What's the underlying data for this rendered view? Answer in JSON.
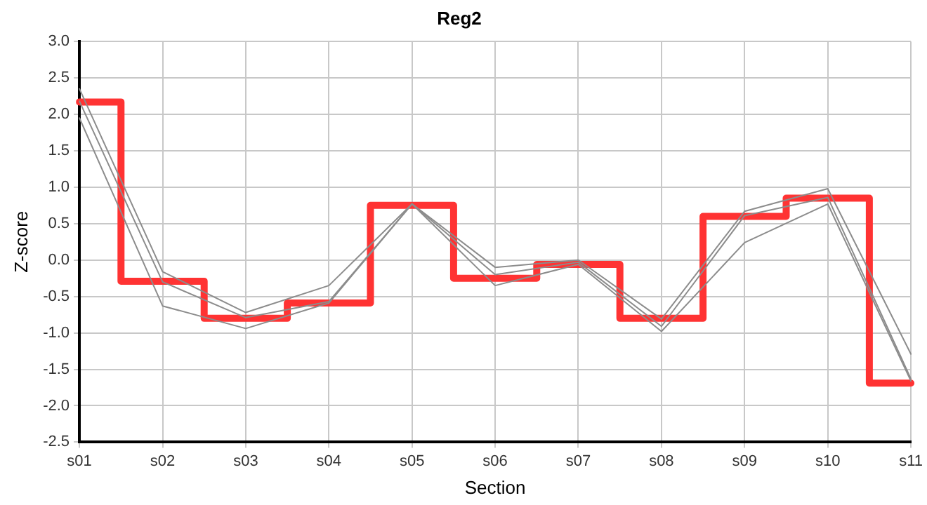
{
  "chart_data": {
    "type": "line",
    "title": "Reg2",
    "xlabel": "Section",
    "ylabel": "Z-score",
    "categories": [
      "s01",
      "s02",
      "s03",
      "s04",
      "s05",
      "s06",
      "s07",
      "s08",
      "s09",
      "s10",
      "s11"
    ],
    "series": [
      {
        "color": "#8c8c8c",
        "values": [
          2.35,
          -0.16,
          -0.72,
          -0.35,
          0.77,
          -0.1,
          0.0,
          -0.81,
          0.67,
          0.98,
          -1.29
        ]
      },
      {
        "color": "#8c8c8c",
        "values": [
          2.18,
          -0.3,
          -0.79,
          -0.57,
          0.77,
          -0.2,
          -0.03,
          -0.91,
          0.61,
          0.86,
          -1.63
        ]
      },
      {
        "color": "#8c8c8c",
        "values": [
          1.95,
          -0.63,
          -0.94,
          -0.59,
          0.77,
          -0.35,
          -0.06,
          -0.98,
          0.24,
          0.77,
          -1.66
        ]
      },
      {
        "type": "step",
        "color": "#ff3333",
        "values": [
          2.17,
          -0.29,
          -0.8,
          -0.59,
          0.75,
          -0.25,
          -0.06,
          -0.8,
          0.6,
          0.85,
          -1.69
        ]
      }
    ],
    "ylim": [
      -2.5,
      3.0
    ],
    "yticks": [
      {
        "value": -2.5,
        "label": "-2.5"
      },
      {
        "value": -2,
        "label": "-2.0"
      },
      {
        "value": -1.5,
        "label": "-1.5"
      },
      {
        "value": -1,
        "label": "-1.0"
      },
      {
        "value": -0.5,
        "label": "-0.5"
      },
      {
        "value": 0,
        "label": "0.0"
      },
      {
        "value": 0.5,
        "label": "0.5"
      },
      {
        "value": 1,
        "label": "1.0"
      },
      {
        "value": 1.5,
        "label": "1.5"
      },
      {
        "value": 2,
        "label": "2.0"
      },
      {
        "value": 2.5,
        "label": "2.5"
      },
      {
        "value": 3,
        "label": "3.0"
      }
    ],
    "grid": true,
    "legend": false,
    "marker": "none"
  }
}
